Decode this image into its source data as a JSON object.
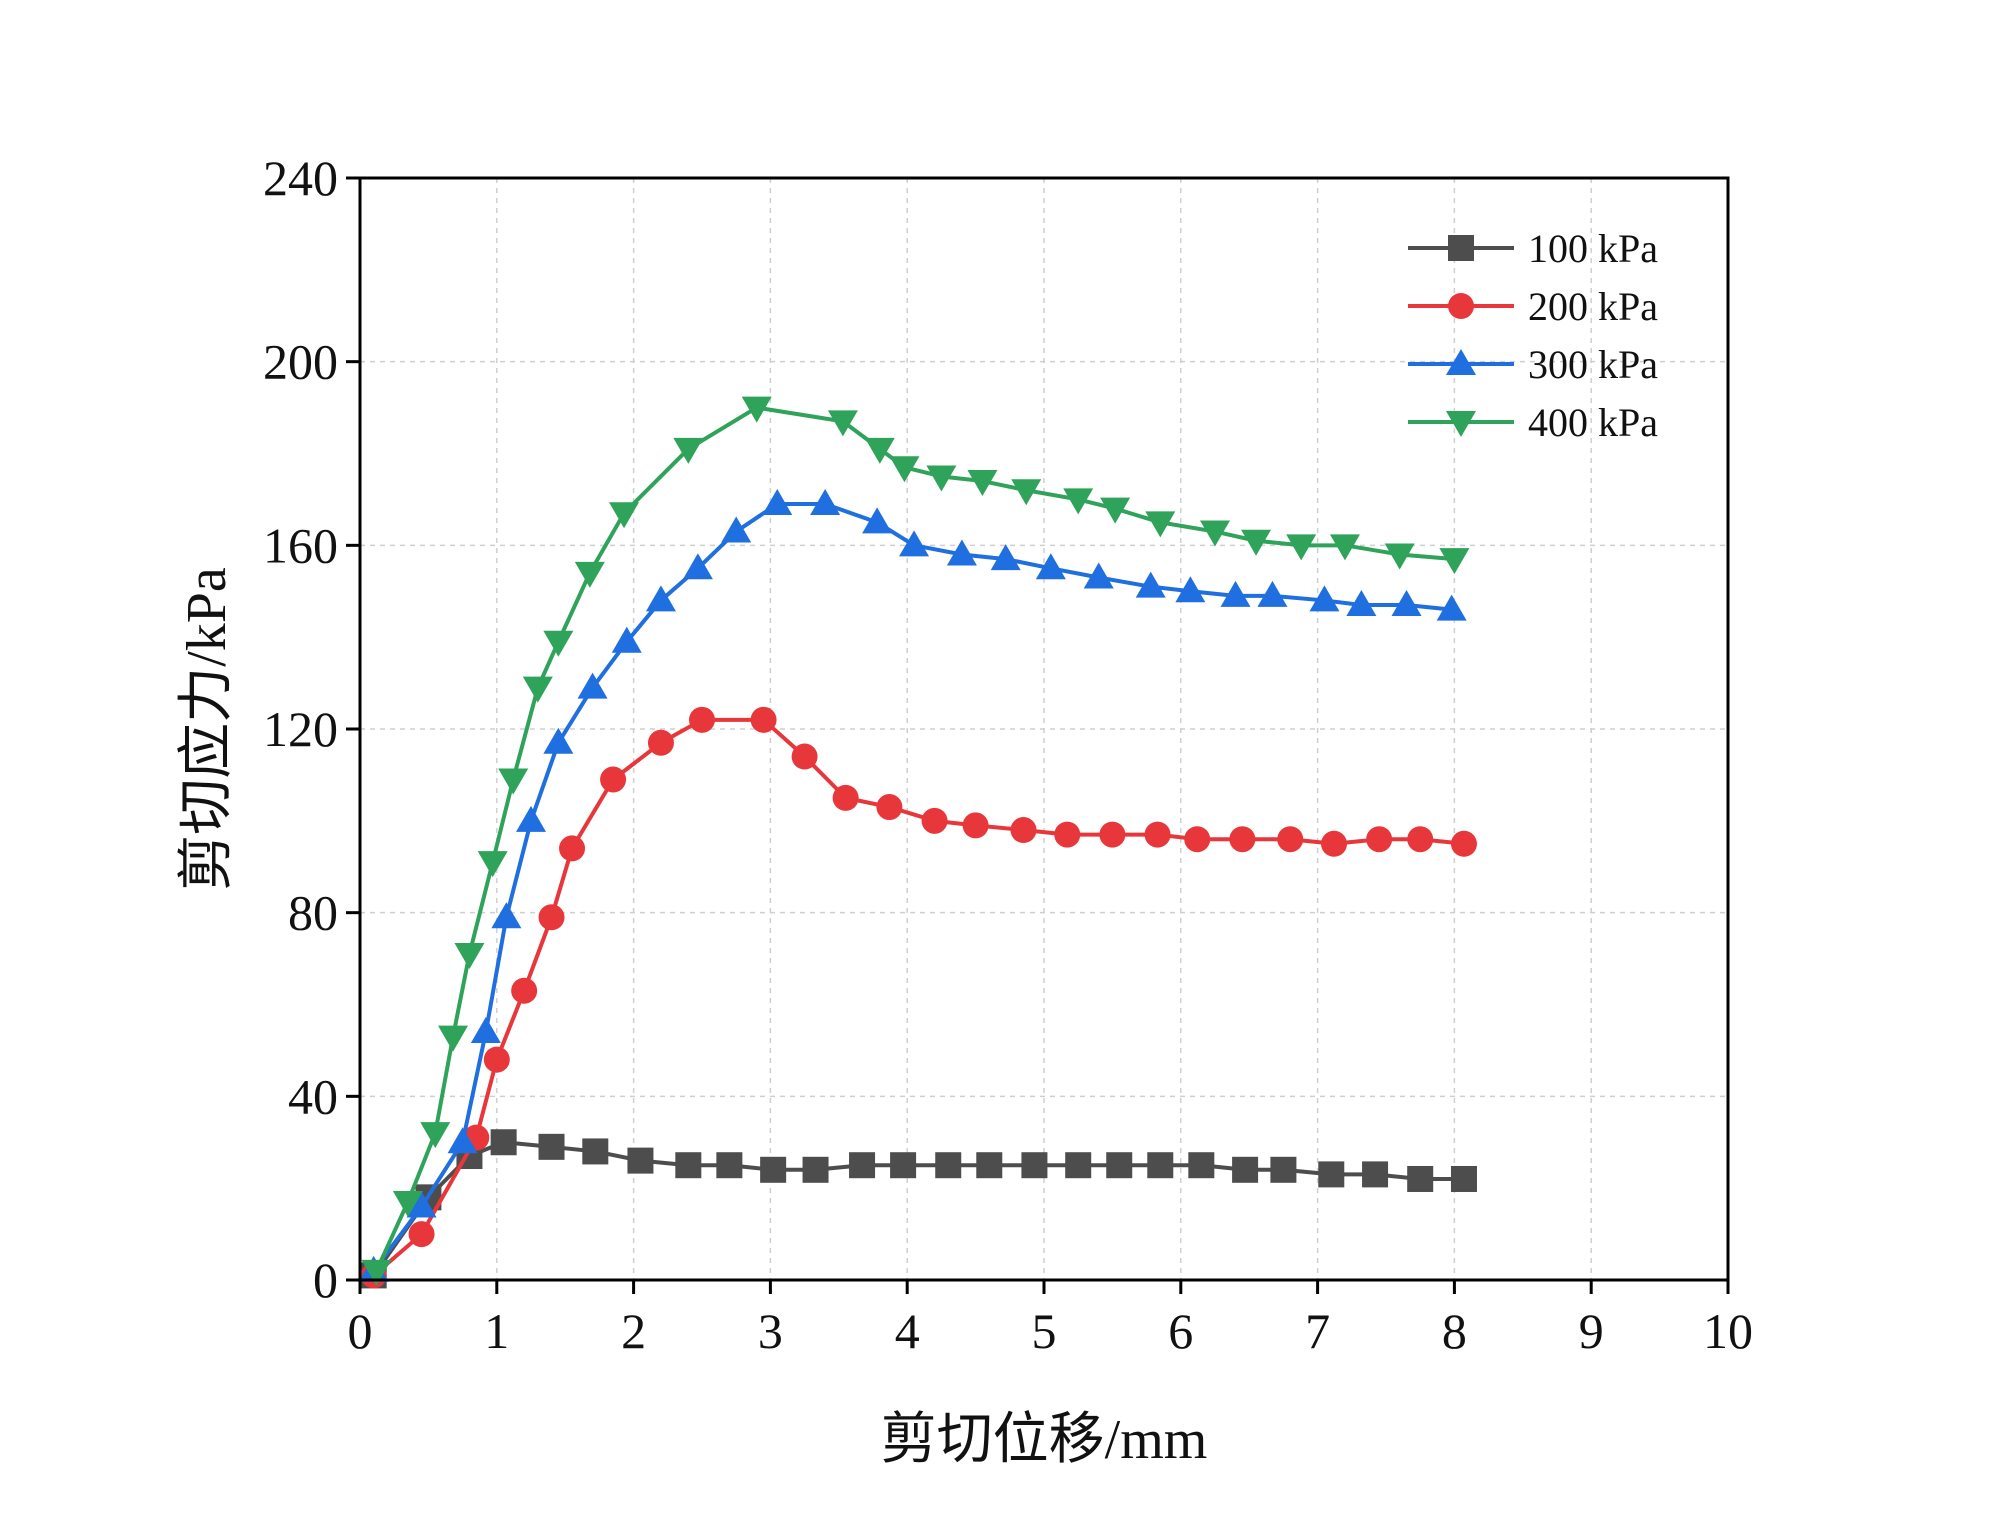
{
  "chart_data": {
    "type": "line",
    "title": "",
    "xlabel": "剪切位移/mm",
    "ylabel": "剪切应力/kPa",
    "xlim": [
      0,
      10
    ],
    "ylim": [
      0,
      240
    ],
    "xticks": [
      0,
      1,
      2,
      3,
      4,
      5,
      6,
      7,
      8,
      9,
      10
    ],
    "yticks": [
      0,
      40,
      80,
      120,
      160,
      200,
      240
    ],
    "grid": true,
    "legend_position": "top-right",
    "series": [
      {
        "name": "100 kPa",
        "color": "#4d4d4d",
        "marker": "square",
        "x": [
          0.1,
          0.5,
          0.8,
          1.05,
          1.4,
          1.72,
          2.05,
          2.4,
          2.7,
          3.02,
          3.33,
          3.67,
          3.97,
          4.3,
          4.6,
          4.93,
          5.25,
          5.55,
          5.85,
          6.15,
          6.47,
          6.75,
          7.1,
          7.42,
          7.75,
          8.07
        ],
        "y": [
          1,
          18,
          27,
          30,
          29,
          28,
          26,
          25,
          25,
          24,
          24,
          25,
          25,
          25,
          25,
          25,
          25,
          25,
          25,
          25,
          24,
          24,
          23,
          23,
          22,
          22
        ]
      },
      {
        "name": "200 kPa",
        "color": "#e8373a",
        "marker": "circle",
        "x": [
          0.1,
          0.45,
          0.85,
          1.0,
          1.2,
          1.4,
          1.55,
          1.85,
          2.2,
          2.5,
          2.95,
          3.25,
          3.55,
          3.87,
          4.2,
          4.5,
          4.85,
          5.17,
          5.5,
          5.83,
          6.12,
          6.45,
          6.8,
          7.12,
          7.45,
          7.75,
          8.07
        ],
        "y": [
          1,
          10,
          31,
          48,
          63,
          79,
          94,
          109,
          117,
          122,
          122,
          114,
          105,
          103,
          100,
          99,
          98,
          97,
          97,
          97,
          96,
          96,
          96,
          95,
          96,
          96,
          95
        ]
      },
      {
        "name": "300 kPa",
        "color": "#1f6fe0",
        "marker": "triangle-up",
        "x": [
          0.1,
          0.45,
          0.75,
          0.92,
          1.07,
          1.25,
          1.45,
          1.7,
          1.95,
          2.2,
          2.47,
          2.75,
          3.05,
          3.4,
          3.78,
          4.05,
          4.4,
          4.72,
          5.05,
          5.4,
          5.78,
          6.07,
          6.4,
          6.67,
          7.05,
          7.32,
          7.65,
          7.98
        ],
        "y": [
          2,
          16,
          30,
          54,
          79,
          100,
          117,
          129,
          139,
          148,
          155,
          163,
          169,
          169,
          165,
          160,
          158,
          157,
          155,
          153,
          151,
          150,
          149,
          149,
          148,
          147,
          147,
          146
        ]
      },
      {
        "name": "400 kPa",
        "color": "#2fa35a",
        "marker": "triangle-down",
        "x": [
          0.12,
          0.35,
          0.55,
          0.68,
          0.8,
          0.97,
          1.12,
          1.3,
          1.45,
          1.68,
          1.93,
          2.4,
          2.9,
          3.53,
          3.8,
          3.98,
          4.25,
          4.55,
          4.87,
          5.25,
          5.52,
          5.85,
          6.25,
          6.55,
          6.88,
          7.2,
          7.6,
          8.0
        ],
        "y": [
          2,
          17,
          32,
          53,
          71,
          91,
          109,
          129,
          139,
          154,
          167,
          181,
          190,
          187,
          181,
          177,
          175,
          174,
          172,
          170,
          168,
          165,
          163,
          161,
          160,
          160,
          158,
          157
        ]
      }
    ]
  }
}
